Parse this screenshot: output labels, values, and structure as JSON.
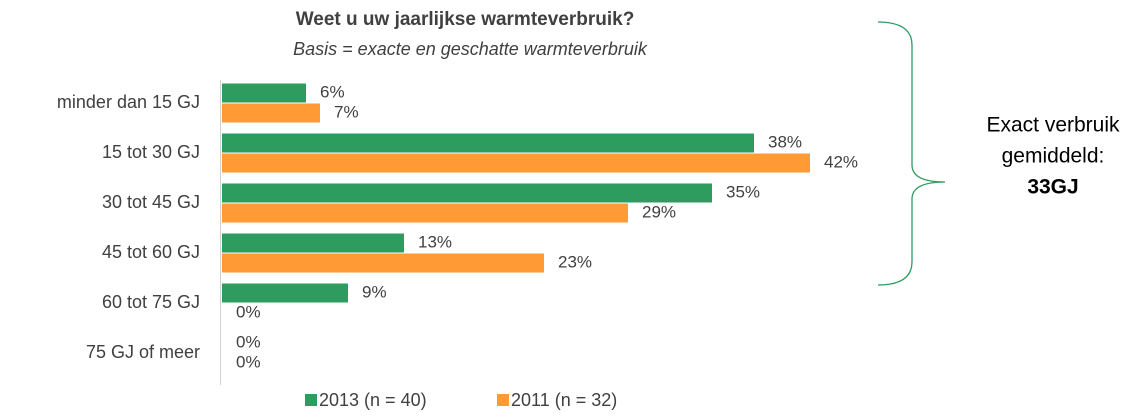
{
  "chart_data": {
    "type": "hbar",
    "title": "Weet u uw jaarlijkse warmteverbruik?",
    "subtitle": "Basis = exacte en geschatte warmteverbruik",
    "categories": [
      "minder dan 15 GJ",
      "15 tot 30 GJ",
      "30 tot 45 GJ",
      "45 tot 60 GJ",
      "60 tot 75 GJ",
      "75 GJ of meer"
    ],
    "series": [
      {
        "name": "2013 (n = 40)",
        "color": "#2e9b5f",
        "values": [
          6,
          38,
          35,
          13,
          9,
          0
        ],
        "value_labels": [
          "6%",
          "38%",
          "35%",
          "13%",
          "9%",
          "0%"
        ]
      },
      {
        "name": "2011 (n = 32)",
        "color": "#ff9a35",
        "values": [
          7,
          42,
          29,
          23,
          0,
          0
        ],
        "value_labels": [
          "7%",
          "42%",
          "29%",
          "23%",
          "0%",
          "0%"
        ]
      }
    ],
    "annotation": {
      "lines": [
        "Exact verbruik",
        "gemiddeld:",
        "33GJ"
      ]
    }
  }
}
